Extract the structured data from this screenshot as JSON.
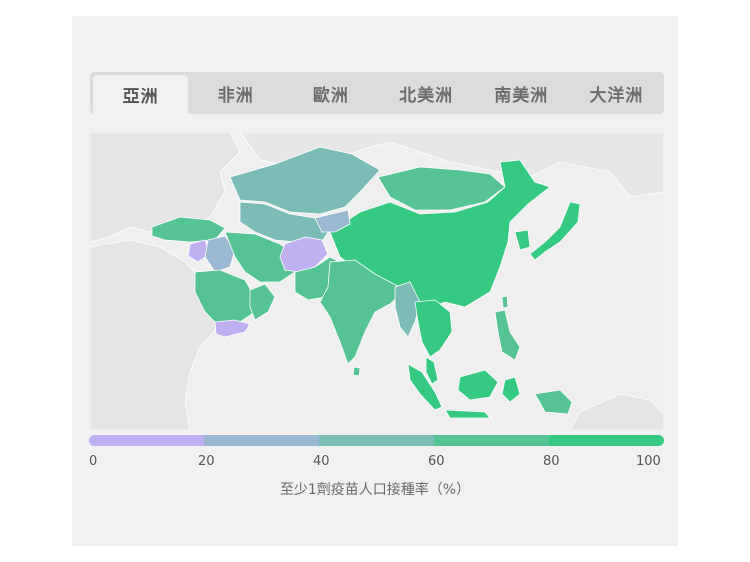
{
  "tabs": [
    {
      "label": "亞洲",
      "active": true
    },
    {
      "label": "非洲",
      "active": false
    },
    {
      "label": "歐洲",
      "active": false
    },
    {
      "label": "北美洲",
      "active": false
    },
    {
      "label": "南美洲",
      "active": false
    },
    {
      "label": "大洋洲",
      "active": false
    }
  ],
  "legend": {
    "title": "至少1劑疫苗人口接種率（%）",
    "ticks": [
      "0",
      "20",
      "40",
      "60",
      "80",
      "100"
    ],
    "colors": [
      "#bfb1f1",
      "#9bb8d3",
      "#7bbdb6",
      "#55c393",
      "#36c981"
    ]
  },
  "map_colors": {
    "background_land": "#e6e6e6",
    "border": "#ffffff"
  }
}
